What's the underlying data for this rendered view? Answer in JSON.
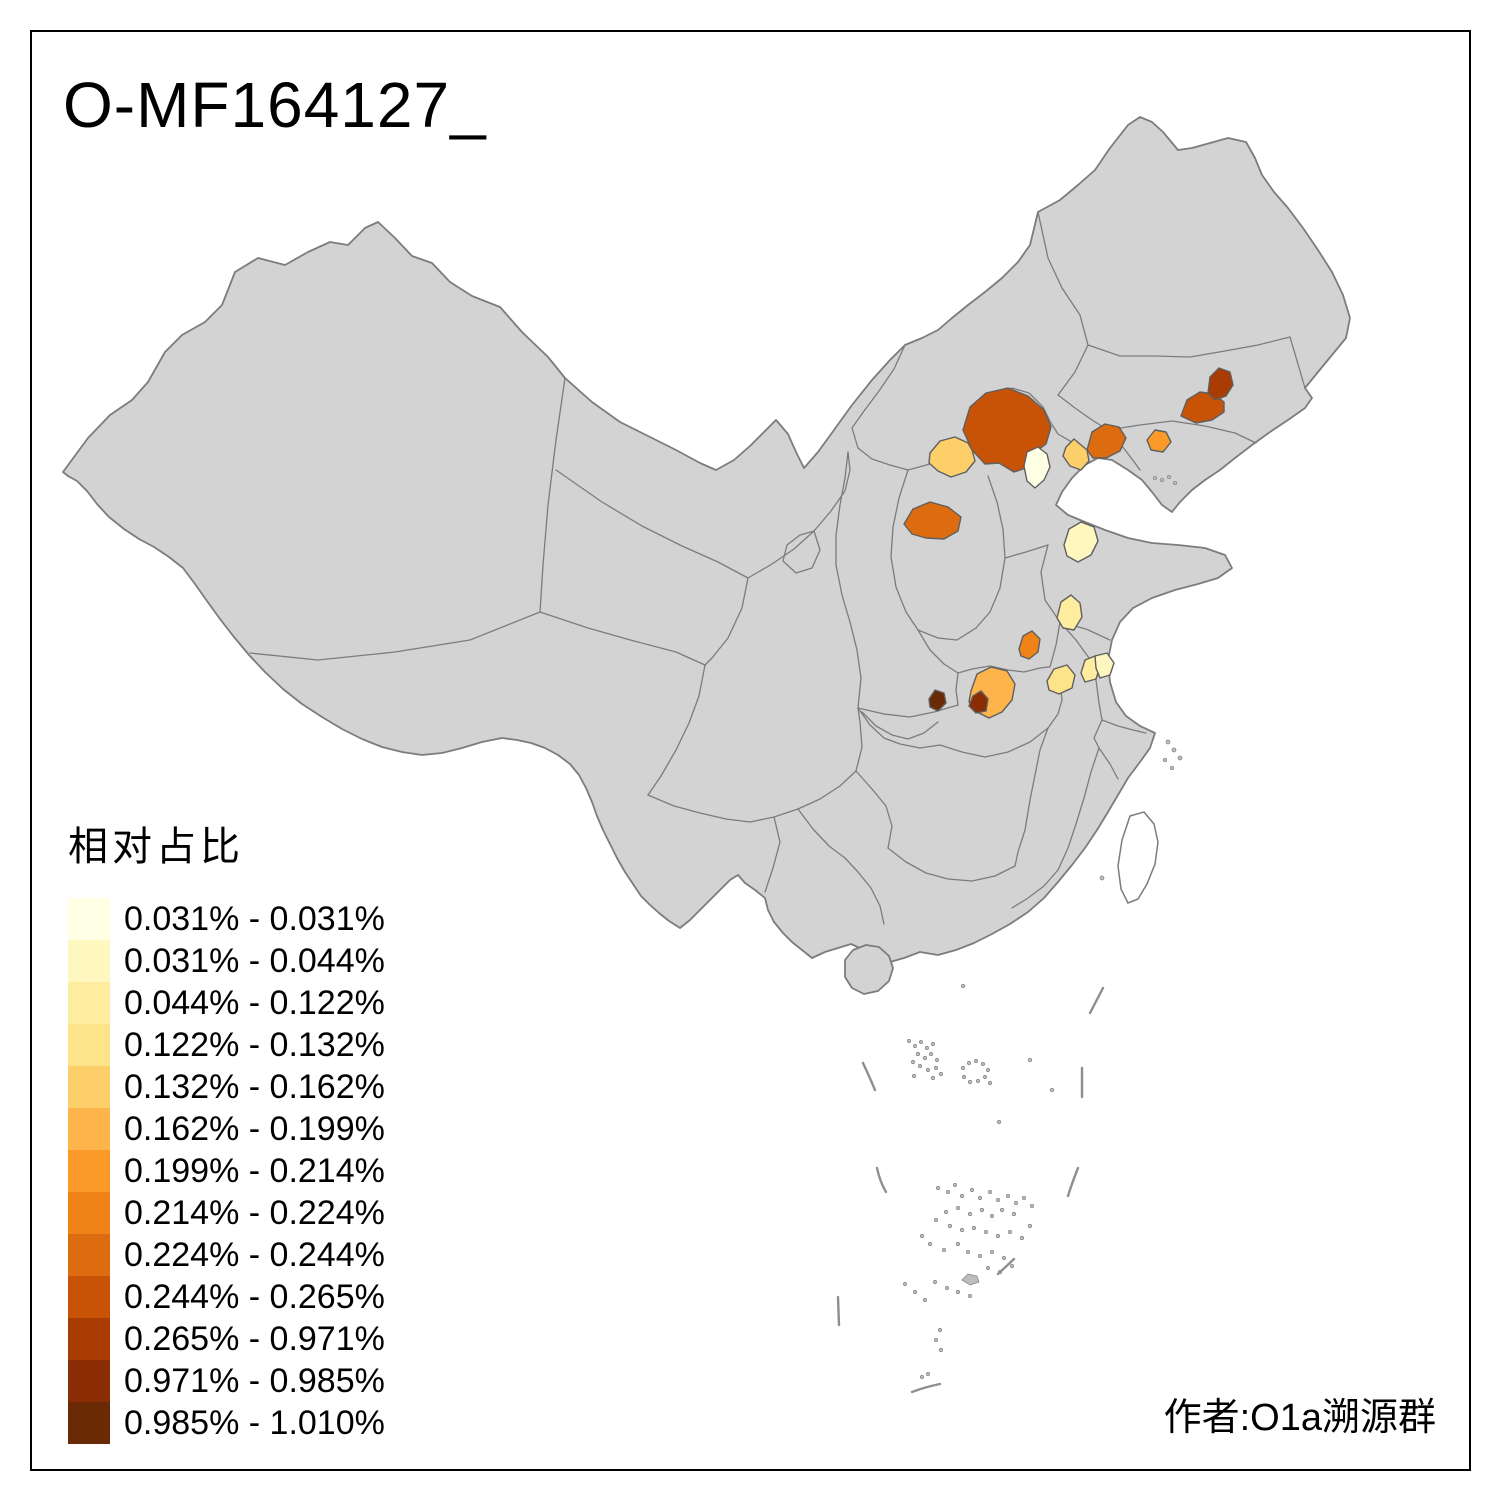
{
  "title": "O-MF164127_",
  "credit": "作者:O1a溯源群",
  "legend": {
    "title": "相对占比",
    "items": [
      {
        "label": "0.031% - 0.031%",
        "color": "#FFFFE5"
      },
      {
        "label": "0.031% - 0.044%",
        "color": "#FFF7C0"
      },
      {
        "label": "0.044% - 0.122%",
        "color": "#FEEC9F"
      },
      {
        "label": "0.122% - 0.132%",
        "color": "#FDE38A"
      },
      {
        "label": "0.132% - 0.162%",
        "color": "#FDCF6B"
      },
      {
        "label": "0.162% - 0.199%",
        "color": "#FDB44B"
      },
      {
        "label": "0.199% - 0.214%",
        "color": "#FB9A29"
      },
      {
        "label": "0.214% - 0.224%",
        "color": "#EF8318"
      },
      {
        "label": "0.224% - 0.244%",
        "color": "#DD6B10"
      },
      {
        "label": "0.244% - 0.265%",
        "color": "#C85306"
      },
      {
        "label": "0.265% - 0.971%",
        "color": "#A83C03"
      },
      {
        "label": "0.971% - 0.985%",
        "color": "#8A2C04"
      },
      {
        "label": "0.985% - 1.010%",
        "color": "#6B2A06"
      }
    ]
  },
  "map": {
    "land_fill": "#D3D3D3",
    "boundary_color": "#7C7C7C",
    "region_outline_color": "#5F5F5F",
    "sea_fill": "#FFFFFF",
    "frame_color": "#000000",
    "regions": [
      {
        "id": "r1",
        "class": 11
      },
      {
        "id": "r2",
        "class": 10
      },
      {
        "id": "r3",
        "class": 7
      },
      {
        "id": "r4",
        "class": 9
      },
      {
        "id": "r5",
        "class": 5
      },
      {
        "id": "r6",
        "class": 10
      },
      {
        "id": "r7",
        "class": 5
      },
      {
        "id": "r8",
        "class": 1
      },
      {
        "id": "r9",
        "class": 9
      },
      {
        "id": "r10",
        "class": 2
      },
      {
        "id": "r11",
        "class": 3
      },
      {
        "id": "r12",
        "class": 8
      },
      {
        "id": "r13",
        "class": 4
      },
      {
        "id": "r14",
        "class": 3
      },
      {
        "id": "r15",
        "class": 2
      },
      {
        "id": "r16",
        "class": 6
      },
      {
        "id": "r17",
        "class": 12
      },
      {
        "id": "r18",
        "class": 13
      }
    ]
  },
  "chart_data": {
    "type": "choropleth",
    "title": "O-MF164127_",
    "legend_title": "相对占比",
    "unit": "%",
    "no_data_fill": "#D3D3D3",
    "classes": [
      "0.031% - 0.031%",
      "0.031% - 0.044%",
      "0.044% - 0.122%",
      "0.122% - 0.132%",
      "0.132% - 0.162%",
      "0.162% - 0.199%",
      "0.199% - 0.214%",
      "0.214% - 0.224%",
      "0.224% - 0.244%",
      "0.244% - 0.265%",
      "0.265% - 0.971%",
      "0.971% - 0.985%",
      "0.985% - 1.010%"
    ],
    "highlighted_regions": [
      {
        "id": "r1",
        "location": "far northeast",
        "range": "0.265% - 0.971%"
      },
      {
        "id": "r2",
        "location": "northeast",
        "range": "0.244% - 0.265%"
      },
      {
        "id": "r3",
        "location": "northeast coastal",
        "range": "0.199% - 0.214%"
      },
      {
        "id": "r4",
        "location": "north coastal",
        "range": "0.224% - 0.244%"
      },
      {
        "id": "r5",
        "location": "north coastal small",
        "range": "0.132% - 0.162%"
      },
      {
        "id": "r6",
        "location": "north large",
        "range": "0.244% - 0.265%"
      },
      {
        "id": "r7",
        "location": "north west of large",
        "range": "0.132% - 0.162%"
      },
      {
        "id": "r8",
        "location": "north pale",
        "range": "0.031% - 0.031%"
      },
      {
        "id": "r9",
        "location": "north central-west",
        "range": "0.224% - 0.244%"
      },
      {
        "id": "r10",
        "location": "east pale",
        "range": "0.031% - 0.044%"
      },
      {
        "id": "r11",
        "location": "central pale",
        "range": "0.044% - 0.122%"
      },
      {
        "id": "r12",
        "location": "central orange",
        "range": "0.214% - 0.224%"
      },
      {
        "id": "r13",
        "location": "central-east pale",
        "range": "0.122% - 0.132%"
      },
      {
        "id": "r14",
        "location": "central-east pale 2",
        "range": "0.044% - 0.122%"
      },
      {
        "id": "r15",
        "location": "central-east pale 3",
        "range": "0.031% - 0.044%"
      },
      {
        "id": "r16",
        "location": "central orange large",
        "range": "0.162% - 0.199%"
      },
      {
        "id": "r17",
        "location": "central dark small",
        "range": "0.971% - 0.985%"
      },
      {
        "id": "r18",
        "location": "central dark small west",
        "range": "0.985% - 1.010%"
      }
    ]
  }
}
